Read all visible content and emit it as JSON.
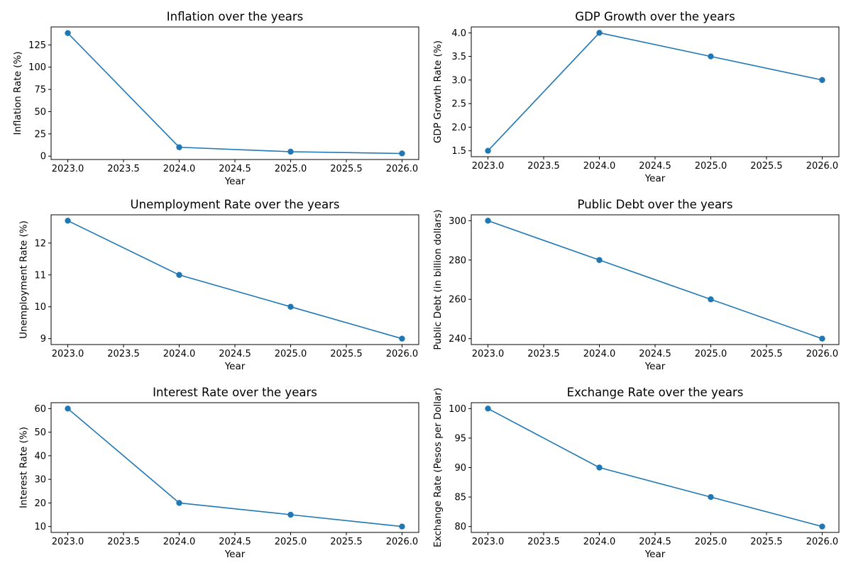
{
  "theme": {
    "series_color": "#1f77b4"
  },
  "chart_data": [
    {
      "type": "line",
      "title": "Inflation over the years",
      "xlabel": "Year",
      "ylabel": "Inflation Rate (%)",
      "x": [
        2023,
        2024,
        2025,
        2026
      ],
      "y": [
        138.3,
        10,
        5,
        3
      ],
      "xlim": [
        2022.85,
        2026.15
      ],
      "ylim": [
        -3.8,
        145.2
      ],
      "xticks": [
        "2023.0",
        "2023.5",
        "2024.0",
        "2024.5",
        "2025.0",
        "2025.5",
        "2026.0"
      ],
      "yticks": [
        "0",
        "25",
        "50",
        "75",
        "100",
        "125"
      ],
      "grid": false,
      "marker": "circle"
    },
    {
      "type": "line",
      "title": "GDP Growth over the years",
      "xlabel": "Year",
      "ylabel": "GDP Growth Rate (%)",
      "x": [
        2023,
        2024,
        2025,
        2026
      ],
      "y": [
        1.5,
        4.0,
        3.5,
        3.0
      ],
      "xlim": [
        2022.85,
        2026.15
      ],
      "ylim": [
        1.375,
        4.125
      ],
      "xticks": [
        "2023.0",
        "2023.5",
        "2024.0",
        "2024.5",
        "2025.0",
        "2025.5",
        "2026.0"
      ],
      "yticks": [
        "1.5",
        "2.0",
        "2.5",
        "3.0",
        "3.5",
        "4.0"
      ],
      "grid": false,
      "marker": "circle"
    },
    {
      "type": "line",
      "title": "Unemployment Rate over the years",
      "xlabel": "Year",
      "ylabel": "Unemployment Rate (%)",
      "x": [
        2023,
        2024,
        2025,
        2026
      ],
      "y": [
        12.7,
        11.0,
        10.0,
        9.0
      ],
      "xlim": [
        2022.85,
        2026.15
      ],
      "ylim": [
        8.815,
        12.885
      ],
      "xticks": [
        "2023.0",
        "2023.5",
        "2024.0",
        "2024.5",
        "2025.0",
        "2025.5",
        "2026.0"
      ],
      "yticks": [
        "9",
        "10",
        "11",
        "12"
      ],
      "grid": false,
      "marker": "circle"
    },
    {
      "type": "line",
      "title": "Public Debt over the years",
      "xlabel": "Year",
      "ylabel": "Public Debt (in billion dollars)",
      "x": [
        2023,
        2024,
        2025,
        2026
      ],
      "y": [
        300,
        280,
        260,
        240
      ],
      "xlim": [
        2022.85,
        2026.15
      ],
      "ylim": [
        237,
        303
      ],
      "xticks": [
        "2023.0",
        "2023.5",
        "2024.0",
        "2024.5",
        "2025.0",
        "2025.5",
        "2026.0"
      ],
      "yticks": [
        "240",
        "260",
        "280",
        "300"
      ],
      "grid": false,
      "marker": "circle"
    },
    {
      "type": "line",
      "title": "Interest Rate over the years",
      "xlabel": "Year",
      "ylabel": "Interest Rate (%)",
      "x": [
        2023,
        2024,
        2025,
        2026
      ],
      "y": [
        60,
        20,
        15,
        10
      ],
      "xlim": [
        2022.85,
        2026.15
      ],
      "ylim": [
        7.5,
        62.5
      ],
      "xticks": [
        "2023.0",
        "2023.5",
        "2024.0",
        "2024.5",
        "2025.0",
        "2025.5",
        "2026.0"
      ],
      "yticks": [
        "10",
        "20",
        "30",
        "40",
        "50",
        "60"
      ],
      "grid": false,
      "marker": "circle"
    },
    {
      "type": "line",
      "title": "Exchange Rate over the years",
      "xlabel": "Year",
      "ylabel": "Exchange Rate (Pesos per Dollar)",
      "x": [
        2023,
        2024,
        2025,
        2026
      ],
      "y": [
        100,
        90,
        85,
        80
      ],
      "xlim": [
        2022.85,
        2026.15
      ],
      "ylim": [
        79,
        101
      ],
      "xticks": [
        "2023.0",
        "2023.5",
        "2024.0",
        "2024.5",
        "2025.0",
        "2025.5",
        "2026.0"
      ],
      "yticks": [
        "80",
        "85",
        "90",
        "95",
        "100"
      ],
      "grid": false,
      "marker": "circle"
    }
  ]
}
